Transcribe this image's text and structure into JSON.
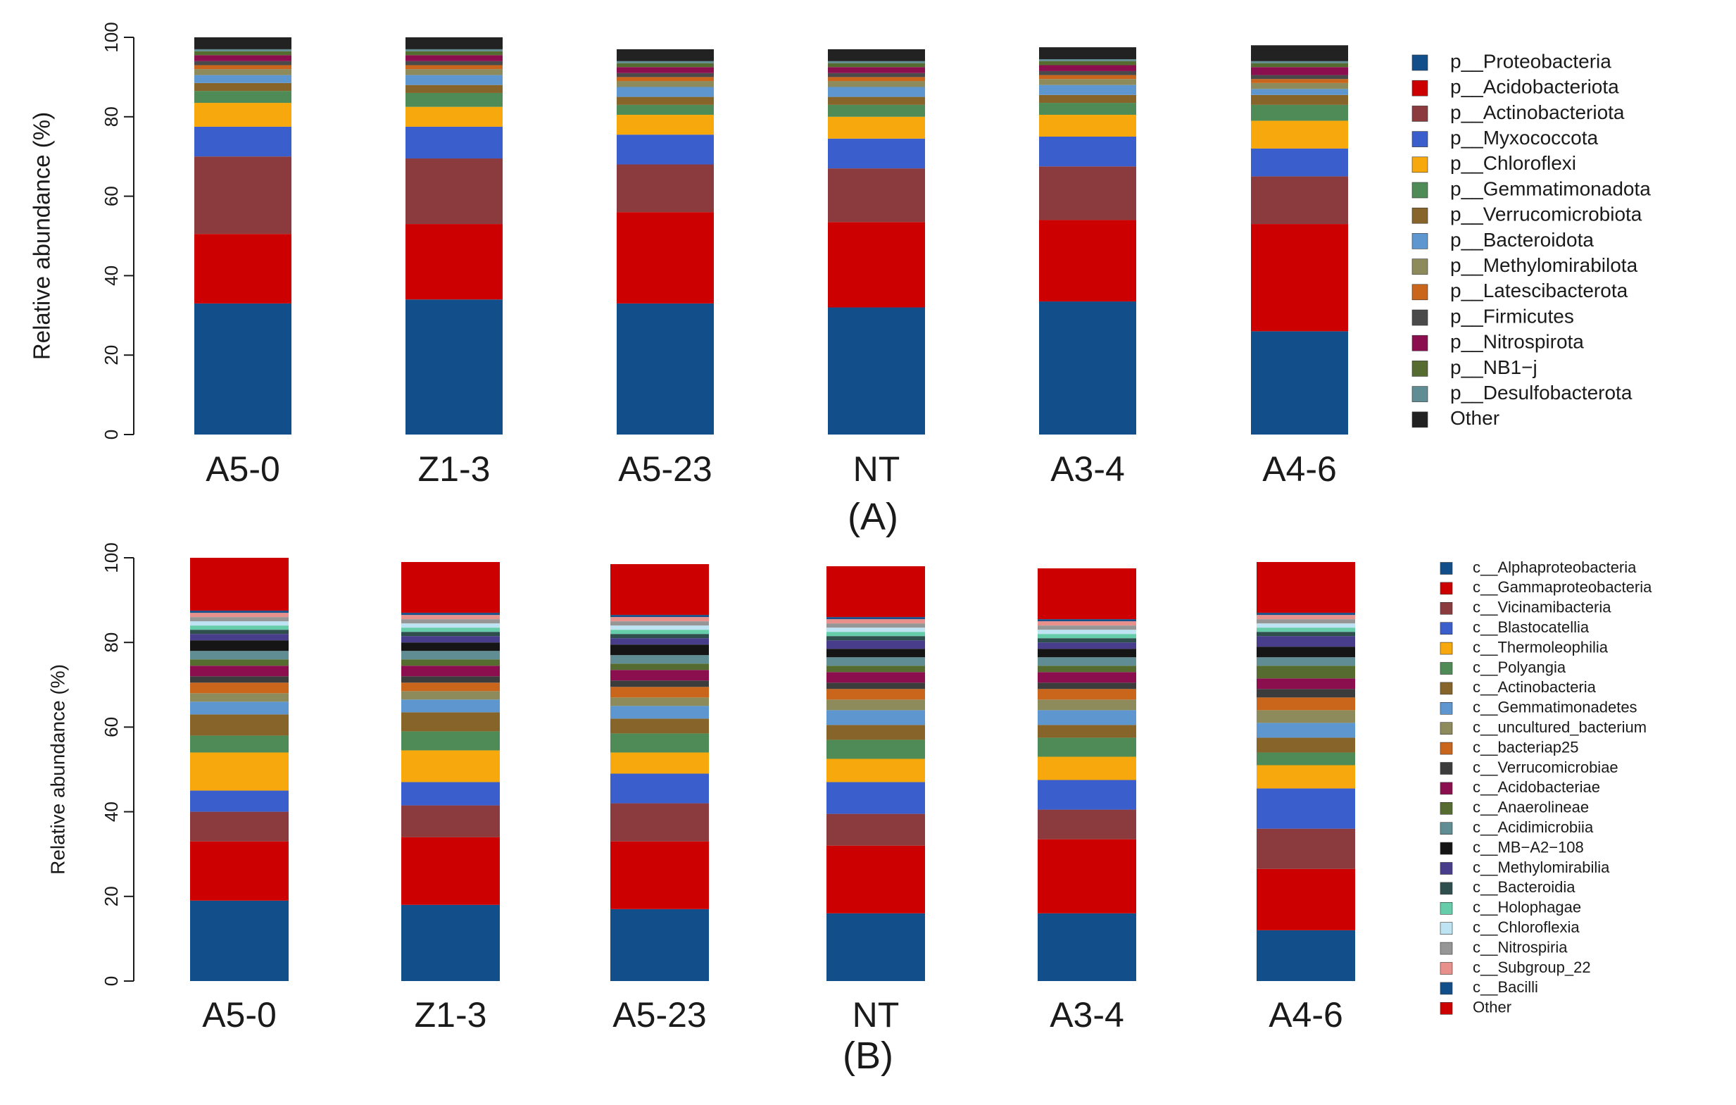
{
  "chart_data": [
    {
      "type": "bar",
      "stacked": true,
      "panel_label": "(A)",
      "ylabel": "Relative abundance (%)",
      "ylim": [
        0,
        100
      ],
      "yticks": [
        "0",
        "20",
        "40",
        "60",
        "80",
        "100"
      ],
      "categories": [
        "A5-0",
        "Z1-3",
        "A5-23",
        "NT",
        "A3-4",
        "A4-6"
      ],
      "legend_position": "right",
      "series": [
        {
          "name": "p__Proteobacteria",
          "color": "#124F8A",
          "values": [
            33.0,
            34.0,
            33.0,
            32.0,
            33.5,
            26.0
          ]
        },
        {
          "name": "p__Acidobacteriota",
          "color": "#CC0000",
          "values": [
            17.5,
            19.0,
            23.0,
            21.5,
            20.5,
            27.0
          ]
        },
        {
          "name": "p__Actinobacteriota",
          "color": "#8B3A3E",
          "values": [
            19.5,
            16.5,
            12.0,
            13.5,
            13.5,
            12.0
          ]
        },
        {
          "name": "p__Myxococcota",
          "color": "#3A5FCD",
          "values": [
            7.5,
            8.0,
            7.5,
            7.5,
            7.5,
            7.0
          ]
        },
        {
          "name": "p__Chloroflexi",
          "color": "#F6A80C",
          "values": [
            6.0,
            5.0,
            5.0,
            5.5,
            5.5,
            7.0
          ]
        },
        {
          "name": "p__Gemmatimonadota",
          "color": "#4E8B57",
          "values": [
            3.0,
            3.5,
            2.5,
            3.0,
            3.0,
            4.0
          ]
        },
        {
          "name": "p__Verrucomicrobiota",
          "color": "#86642A",
          "values": [
            2.0,
            2.0,
            2.0,
            2.0,
            2.0,
            2.5
          ]
        },
        {
          "name": "p__Bacteroidota",
          "color": "#5E97CF",
          "values": [
            2.0,
            2.5,
            2.5,
            2.5,
            2.5,
            1.5
          ]
        },
        {
          "name": "p__Methylomirabilota",
          "color": "#8D8B5C",
          "values": [
            1.5,
            1.5,
            1.5,
            1.5,
            1.5,
            1.5
          ]
        },
        {
          "name": "p__Latescibacterota",
          "color": "#C9661B",
          "values": [
            1.0,
            1.0,
            1.0,
            1.0,
            1.0,
            1.0
          ]
        },
        {
          "name": "p__Firmicutes",
          "color": "#4A4A4A",
          "values": [
            1.0,
            1.0,
            1.0,
            1.0,
            1.0,
            1.0
          ]
        },
        {
          "name": "p__Nitrospirota",
          "color": "#8B0F4F",
          "values": [
            1.5,
            1.5,
            1.5,
            1.5,
            1.5,
            2.0
          ]
        },
        {
          "name": "p__NB1−j",
          "color": "#556B2F",
          "values": [
            1.0,
            1.0,
            1.0,
            1.0,
            1.0,
            1.0
          ]
        },
        {
          "name": "p__Desulfobacterota",
          "color": "#5F8D93",
          "values": [
            0.5,
            0.5,
            0.5,
            0.5,
            0.5,
            0.5
          ]
        },
        {
          "name": "Other",
          "color": "#222222",
          "values": [
            3.0,
            3.0,
            3.0,
            3.0,
            3.0,
            4.0
          ]
        }
      ]
    },
    {
      "type": "bar",
      "stacked": true,
      "panel_label": "(B)",
      "ylabel": "Relative abundance (%)",
      "ylim": [
        0,
        100
      ],
      "yticks": [
        "0",
        "20",
        "40",
        "60",
        "80",
        "100"
      ],
      "categories": [
        "A5-0",
        "Z1-3",
        "A5-23",
        "NT",
        "A3-4",
        "A4-6"
      ],
      "legend_position": "right",
      "series": [
        {
          "name": "c__Alphaproteobacteria",
          "color": "#124F8A",
          "values": [
            19.0,
            18.0,
            17.0,
            16.0,
            16.0,
            12.0
          ]
        },
        {
          "name": "c__Gammaproteobacteria",
          "color": "#CC0000",
          "values": [
            14.0,
            16.0,
            16.0,
            16.0,
            17.5,
            14.5
          ]
        },
        {
          "name": "c__Vicinamibacteria",
          "color": "#8B3A3E",
          "values": [
            7.0,
            7.5,
            9.0,
            7.5,
            7.0,
            9.5
          ]
        },
        {
          "name": "c__Blastocatellia",
          "color": "#3A5FCD",
          "values": [
            5.0,
            5.5,
            7.0,
            7.5,
            7.0,
            9.5
          ]
        },
        {
          "name": "c__Thermoleophilia",
          "color": "#F6A80C",
          "values": [
            9.0,
            7.5,
            5.0,
            5.5,
            5.5,
            5.5
          ]
        },
        {
          "name": "c__Polyangia",
          "color": "#4E8B57",
          "values": [
            4.0,
            4.5,
            4.5,
            4.5,
            4.5,
            3.0
          ]
        },
        {
          "name": "c__Actinobacteria",
          "color": "#86642A",
          "values": [
            5.0,
            4.5,
            3.5,
            3.5,
            3.0,
            3.5
          ]
        },
        {
          "name": "c__Gemmatimonadetes",
          "color": "#5E97CF",
          "values": [
            3.0,
            3.0,
            3.0,
            3.5,
            3.5,
            3.5
          ]
        },
        {
          "name": "c__uncultured_bacterium",
          "color": "#8D8B5C",
          "values": [
            2.0,
            2.0,
            2.0,
            2.5,
            2.5,
            3.0
          ]
        },
        {
          "name": "c__bacteriap25",
          "color": "#C9661B",
          "values": [
            2.5,
            2.0,
            2.5,
            2.5,
            2.5,
            3.0
          ]
        },
        {
          "name": "c__Verrucomicrobiae",
          "color": "#3C3C3C",
          "values": [
            1.5,
            1.5,
            1.5,
            1.5,
            1.5,
            2.0
          ]
        },
        {
          "name": "c__Acidobacteriae",
          "color": "#8B0F4F",
          "values": [
            2.5,
            2.5,
            2.5,
            2.5,
            2.5,
            2.5
          ]
        },
        {
          "name": "c__Anaerolineae",
          "color": "#556B2F",
          "values": [
            1.5,
            1.5,
            1.5,
            1.5,
            1.5,
            3.0
          ]
        },
        {
          "name": "c__Acidimicrobiia",
          "color": "#5F8D93",
          "values": [
            2.0,
            2.0,
            2.0,
            2.0,
            2.0,
            2.0
          ]
        },
        {
          "name": "c__MB−A2−108",
          "color": "#151515",
          "values": [
            2.5,
            2.0,
            2.5,
            2.0,
            2.0,
            2.5
          ]
        },
        {
          "name": "c__Methylomirabilia",
          "color": "#483D8B",
          "values": [
            1.5,
            1.5,
            1.5,
            2.0,
            1.5,
            2.5
          ]
        },
        {
          "name": "c__Bacteroidia",
          "color": "#2F4F4F",
          "values": [
            1.0,
            1.0,
            1.0,
            1.0,
            1.0,
            1.0
          ]
        },
        {
          "name": "c__Holophagae",
          "color": "#66CDAA",
          "values": [
            1.0,
            1.0,
            1.0,
            1.0,
            1.0,
            1.0
          ]
        },
        {
          "name": "c__Chloroflexia",
          "color": "#BEE3F2",
          "values": [
            1.0,
            1.0,
            1.0,
            1.0,
            1.0,
            1.0
          ]
        },
        {
          "name": "c__Nitrospiria",
          "color": "#969696",
          "values": [
            1.0,
            1.0,
            1.0,
            1.0,
            1.0,
            1.0
          ]
        },
        {
          "name": "c__Subgroup_22",
          "color": "#E8908C",
          "values": [
            1.0,
            1.0,
            1.0,
            1.0,
            1.0,
            1.0
          ]
        },
        {
          "name": "c__Bacilli",
          "color": "#124F8A",
          "values": [
            0.5,
            0.5,
            0.5,
            0.5,
            0.5,
            0.5
          ]
        },
        {
          "name": "Other",
          "color": "#CC0000",
          "values": [
            12.5,
            12.0,
            12.0,
            12.0,
            12.0,
            12.0
          ]
        }
      ]
    }
  ]
}
